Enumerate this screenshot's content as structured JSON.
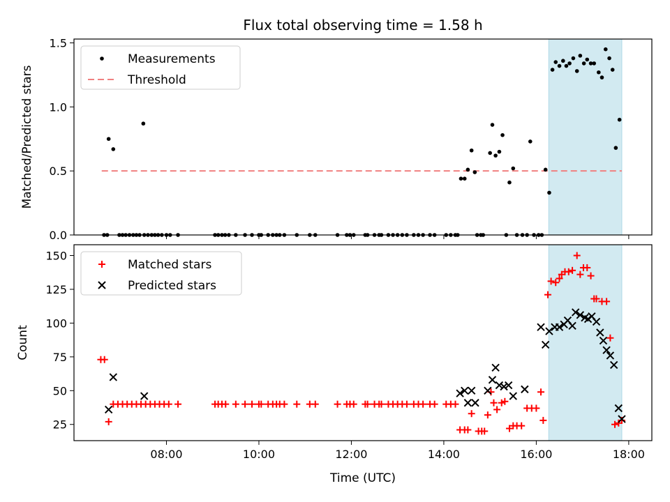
{
  "title": "Flux total observing time = 1.58 h",
  "colors": {
    "measurements": "#000000",
    "threshold": "#f08080",
    "matched": "#ff0000",
    "predicted": "#000000",
    "highlight": "#add8e6"
  },
  "chart_data": [
    {
      "type": "scatter",
      "ylabel": "Matched/Predicted stars",
      "ylim": [
        0,
        1.53
      ],
      "yticks": [
        "0.0",
        "0.5",
        "1.0",
        "1.5"
      ],
      "ytick_values": [
        0,
        0.5,
        1.0,
        1.5
      ],
      "legend": {
        "placement": "top-left",
        "entries": [
          "Measurements",
          "Threshold"
        ]
      },
      "threshold": {
        "value": 0.5,
        "x_start": 6.6,
        "x_end": 17.85
      },
      "highlight_span": [
        16.27,
        17.85
      ],
      "series": [
        {
          "name": "Measurements",
          "x": [
            6.65,
            6.72,
            6.75,
            6.85,
            6.98,
            7.05,
            7.12,
            7.2,
            7.28,
            7.35,
            7.42,
            7.5,
            7.52,
            7.6,
            7.68,
            7.75,
            7.82,
            7.9,
            8.0,
            8.08,
            8.25,
            9.05,
            9.12,
            9.2,
            9.27,
            9.35,
            9.5,
            9.7,
            9.85,
            10.0,
            10.05,
            10.2,
            10.3,
            10.38,
            10.45,
            10.55,
            10.82,
            11.1,
            11.22,
            11.7,
            11.9,
            11.97,
            12.05,
            12.3,
            12.35,
            12.5,
            12.6,
            12.65,
            12.8,
            12.9,
            13.0,
            13.1,
            13.2,
            13.35,
            13.45,
            13.55,
            13.7,
            13.8,
            14.05,
            14.15,
            14.25,
            14.3,
            14.37,
            14.45,
            14.52,
            14.6,
            14.67,
            14.72,
            14.8,
            14.85,
            15.0,
            15.05,
            15.12,
            15.2,
            15.27,
            15.35,
            15.42,
            15.5,
            15.58,
            15.7,
            15.8,
            15.87,
            15.95,
            16.05,
            16.12,
            16.2,
            16.28,
            16.35,
            16.42,
            16.5,
            16.58,
            16.65,
            16.72,
            16.8,
            16.88,
            16.95,
            17.03,
            17.1,
            17.18,
            17.25,
            17.35,
            17.42,
            17.5,
            17.58,
            17.65,
            17.72,
            17.8
          ],
          "y": [
            0,
            0,
            0.75,
            0.67,
            0,
            0,
            0,
            0,
            0,
            0,
            0,
            0.87,
            0,
            0,
            0,
            0,
            0,
            0,
            0,
            0,
            0,
            0,
            0,
            0,
            0,
            0,
            0,
            0,
            0,
            0,
            0,
            0,
            0,
            0,
            0,
            0,
            0,
            0,
            0,
            0,
            0,
            0,
            0,
            0,
            0,
            0,
            0,
            0,
            0,
            0,
            0,
            0,
            0,
            0,
            0,
            0,
            0,
            0,
            0,
            0,
            0,
            0,
            0.44,
            0.44,
            0.51,
            0.66,
            0.49,
            0,
            0,
            0,
            0.64,
            0.86,
            0.62,
            0.65,
            0.78,
            0,
            0.41,
            0.52,
            0,
            0,
            0,
            0.73,
            0,
            0,
            0,
            0.51,
            0.33,
            1.29,
            1.35,
            1.32,
            1.36,
            1.32,
            1.34,
            1.38,
            1.28,
            1.4,
            1.34,
            1.37,
            1.34,
            1.34,
            1.27,
            1.23,
            1.45,
            1.38,
            1.29,
            0.68,
            0.9
          ]
        }
      ]
    },
    {
      "type": "scatter",
      "xlabel": "Time (UTC)",
      "ylabel": "Count",
      "ylim": [
        13,
        158
      ],
      "yticks": [
        "25",
        "50",
        "75",
        "100",
        "125",
        "150"
      ],
      "ytick_values": [
        25,
        50,
        75,
        100,
        125,
        150
      ],
      "xlim": [
        6.0,
        18.5
      ],
      "xticks": [
        "08:00",
        "10:00",
        "12:00",
        "14:00",
        "16:00",
        "18:00"
      ],
      "xtick_values": [
        8,
        10,
        12,
        14,
        16,
        18
      ],
      "legend": {
        "placement": "top-left",
        "entries": [
          "Matched stars",
          "Predicted stars"
        ]
      },
      "highlight_span": [
        16.27,
        17.85
      ],
      "series": [
        {
          "name": "Matched stars",
          "x": [
            6.58,
            6.66,
            6.75,
            6.85,
            6.95,
            7.05,
            7.15,
            7.25,
            7.35,
            7.45,
            7.55,
            7.65,
            7.75,
            7.85,
            7.95,
            8.05,
            8.25,
            9.05,
            9.12,
            9.2,
            9.28,
            9.5,
            9.7,
            9.85,
            10.0,
            10.05,
            10.2,
            10.3,
            10.38,
            10.45,
            10.55,
            10.82,
            11.1,
            11.22,
            11.7,
            11.9,
            11.97,
            12.05,
            12.3,
            12.35,
            12.5,
            12.6,
            12.65,
            12.8,
            12.9,
            13.0,
            13.1,
            13.2,
            13.35,
            13.45,
            13.55,
            13.7,
            13.8,
            14.05,
            14.15,
            14.25,
            14.35,
            14.45,
            14.52,
            14.6,
            14.75,
            14.82,
            14.88,
            14.95,
            15.02,
            15.08,
            15.15,
            15.25,
            15.32,
            15.42,
            15.5,
            15.58,
            15.68,
            15.8,
            15.9,
            16.0,
            16.1,
            16.15,
            16.25,
            16.32,
            16.42,
            16.5,
            16.55,
            16.62,
            16.7,
            16.78,
            16.88,
            16.95,
            17.02,
            17.1,
            17.18,
            17.25,
            17.3,
            17.42,
            17.52,
            17.6,
            17.7,
            17.78,
            17.85
          ],
          "y": [
            73,
            73,
            27,
            40,
            40,
            40,
            40,
            40,
            40,
            40,
            40,
            40,
            40,
            40,
            40,
            40,
            40,
            40,
            40,
            40,
            40,
            40,
            40,
            40,
            40,
            40,
            40,
            40,
            40,
            40,
            40,
            40,
            40,
            40,
            40,
            40,
            40,
            40,
            40,
            40,
            40,
            40,
            40,
            40,
            40,
            40,
            40,
            40,
            40,
            40,
            40,
            40,
            40,
            40,
            40,
            40,
            21,
            21,
            21,
            33,
            20,
            20,
            20,
            32,
            49,
            41,
            36,
            41,
            42,
            22,
            24,
            24,
            24,
            37,
            37,
            37,
            49,
            28,
            121,
            131,
            130,
            133,
            136,
            138,
            138,
            139,
            150,
            136,
            141,
            141,
            135,
            118,
            118,
            116,
            116,
            89,
            25,
            26,
            28
          ],
          "note_x_range": "x values in hours of day"
        },
        {
          "name": "Predicted stars",
          "x": [
            6.75,
            6.85,
            7.52,
            14.35,
            14.45,
            14.52,
            14.6,
            14.68,
            14.95,
            15.05,
            15.12,
            15.2,
            15.3,
            15.4,
            15.5,
            15.75,
            16.1,
            16.2,
            16.28,
            16.4,
            16.5,
            16.6,
            16.68,
            16.78,
            16.85,
            16.95,
            17.05,
            17.12,
            17.2,
            17.3,
            17.38,
            17.45,
            17.52,
            17.6,
            17.68,
            17.78,
            17.85
          ],
          "y": [
            36,
            60,
            46,
            48,
            50,
            41,
            50,
            41,
            50,
            58,
            67,
            54,
            53,
            54,
            46,
            51,
            97,
            84,
            94,
            97,
            97,
            99,
            102,
            98,
            108,
            106,
            104,
            103,
            105,
            101,
            93,
            87,
            80,
            76,
            69,
            37,
            29
          ]
        }
      ]
    }
  ]
}
